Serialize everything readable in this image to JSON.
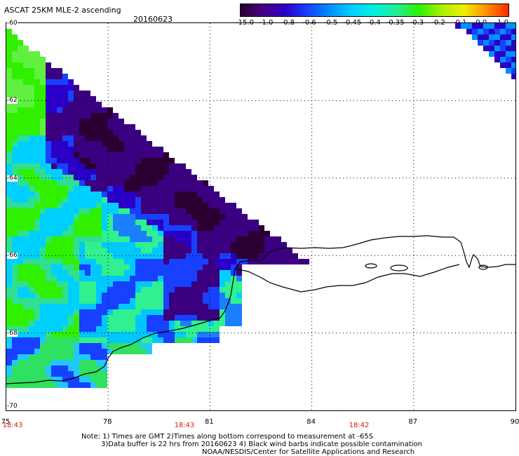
{
  "header": {
    "title": "ASCAT 25KM MLE-2 ascending",
    "date": "20160623"
  },
  "colorbar": {
    "labels": [
      "-15.0",
      "-1.0",
      "-0.8",
      "-0.6",
      "-0.5",
      "-0.45",
      "-0.4",
      "-0.35",
      "-0.3",
      "-0.2",
      "-0.1",
      "0.0",
      "1.0"
    ],
    "gradient": [
      "#2a0030",
      "#4a0080",
      "#2a00c8",
      "#1840ff",
      "#0090ff",
      "#00d0ff",
      "#00f0e0",
      "#20f090",
      "#30f000",
      "#a8f000",
      "#f0f000",
      "#ff9000",
      "#ff2a00"
    ]
  },
  "map": {
    "lon_ticks": [
      "75",
      "78",
      "81",
      "84",
      "87",
      "90"
    ],
    "lat_ticks": [
      "-60",
      "-62",
      "-64",
      "-66",
      "-68",
      "-70"
    ],
    "times": [
      "18:43",
      "18:43",
      "18:42"
    ],
    "lon_range": [
      75,
      90
    ],
    "lat_range": [
      -60,
      -70
    ]
  },
  "footer": {
    "line1": "Note: 1) Times are GMT 2)Times along bottom correspond to measurement at -65S",
    "line2": "3)Data buffer is 22 hrs from 20160623 4) Black wind barbs indicate possible contamination",
    "line3": "NOAA/NESDIS/Center for Satellite Applications and Research"
  },
  "colors": {
    "coast": "#000000",
    "grid": "#000000",
    "time_label": "#cc2200"
  }
}
